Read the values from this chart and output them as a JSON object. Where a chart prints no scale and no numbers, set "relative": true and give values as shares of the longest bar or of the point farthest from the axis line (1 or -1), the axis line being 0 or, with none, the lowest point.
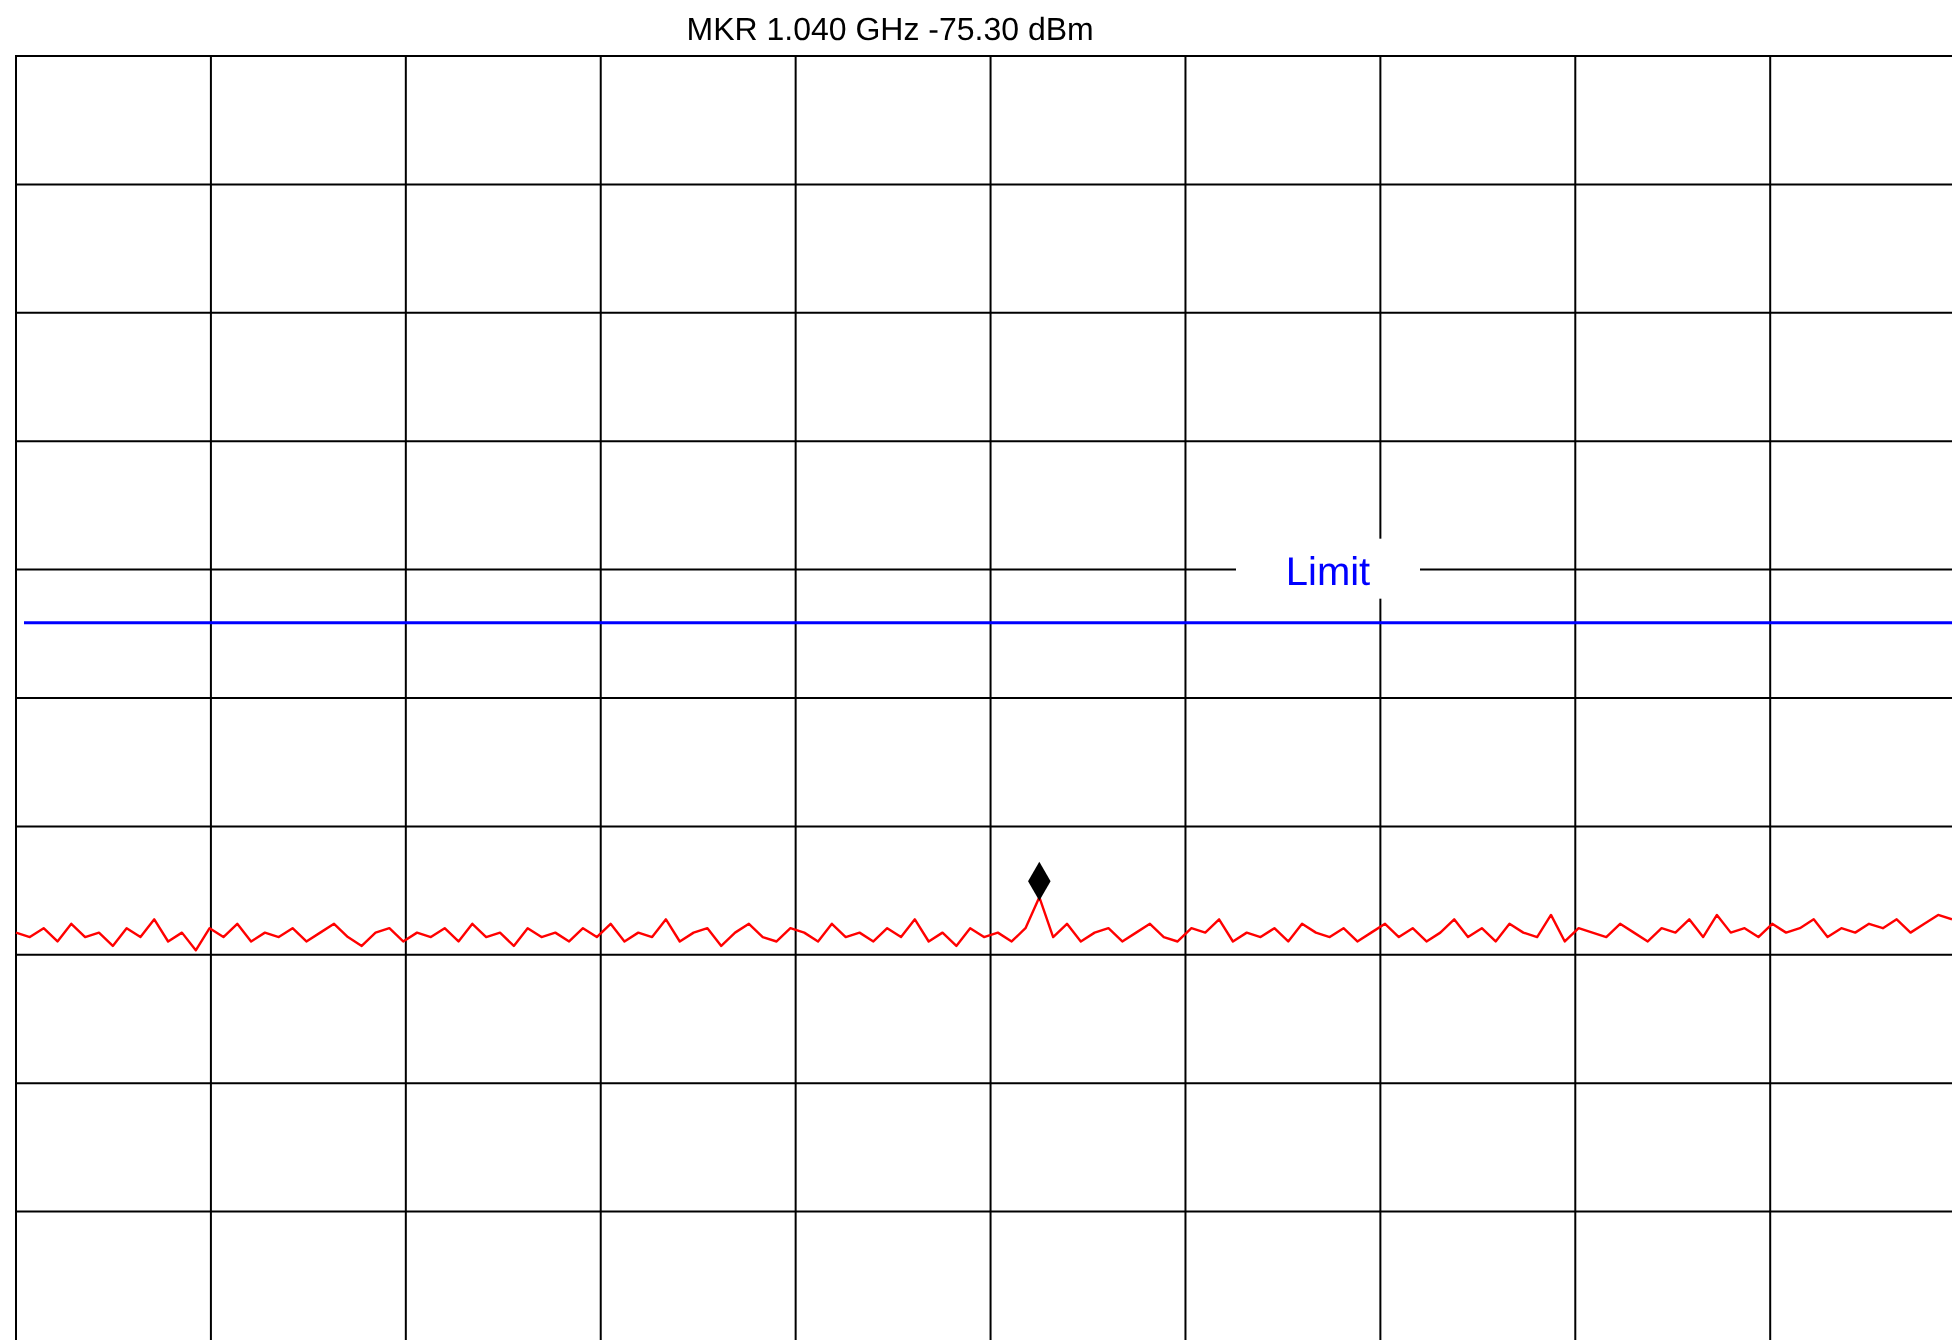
{
  "chart_data": {
    "type": "line",
    "title": "MKR 1.040 GHz  -75.30 dBm",
    "relative": true,
    "grid": true,
    "marker": "none",
    "line_style": "solid",
    "categories": [
      null,
      null,
      null,
      null,
      null,
      null,
      null,
      null,
      null,
      null,
      null,
      null,
      null,
      null,
      null,
      null,
      null,
      null,
      null,
      null,
      null,
      null,
      null,
      null,
      null,
      null,
      null,
      null,
      null,
      null,
      null,
      null,
      null,
      null,
      null,
      null,
      null,
      null,
      null,
      null,
      null,
      null,
      null,
      null,
      null,
      null,
      null,
      null,
      null,
      null,
      null,
      null,
      null,
      null,
      null,
      null,
      null,
      null,
      null,
      null,
      null,
      null,
      null,
      null,
      null,
      null,
      null,
      null,
      null,
      null,
      null,
      null,
      null,
      null,
      null,
      null,
      null,
      null,
      null,
      null,
      null,
      null,
      null,
      null,
      null,
      null,
      null,
      null,
      null,
      null,
      null,
      null,
      null,
      null,
      null,
      null,
      null,
      null,
      null,
      null,
      null,
      null,
      null,
      null,
      null,
      null,
      null,
      null,
      null,
      null,
      null,
      null,
      null,
      null,
      null,
      null,
      null,
      null,
      null,
      null,
      null,
      null,
      null,
      null,
      null,
      null,
      null,
      null,
      null,
      null,
      null,
      null,
      null,
      null,
      null,
      null,
      null,
      null,
      null,
      null,
      null
    ],
    "series": [
      {
        "color": "#ff0000",
        "values": [
          0.92,
          0.91,
          0.93,
          0.9,
          0.94,
          0.91,
          0.92,
          0.89,
          0.93,
          0.91,
          0.95,
          0.9,
          0.92,
          0.88,
          0.93,
          0.91,
          0.94,
          0.9,
          0.92,
          0.91,
          0.93,
          0.9,
          0.92,
          0.94,
          0.91,
          0.89,
          0.92,
          0.93,
          0.9,
          0.92,
          0.91,
          0.93,
          0.9,
          0.94,
          0.91,
          0.92,
          0.89,
          0.93,
          0.91,
          0.92,
          0.9,
          0.93,
          0.91,
          0.94,
          0.9,
          0.92,
          0.91,
          0.95,
          0.9,
          0.92,
          0.93,
          0.89,
          0.92,
          0.94,
          0.91,
          0.9,
          0.93,
          0.92,
          0.9,
          0.94,
          0.91,
          0.92,
          0.9,
          0.93,
          0.91,
          0.95,
          0.9,
          0.92,
          0.89,
          0.93,
          0.91,
          0.92,
          0.9,
          0.93,
          1.0,
          0.91,
          0.94,
          0.9,
          0.92,
          0.93,
          0.9,
          0.92,
          0.94,
          0.91,
          0.9,
          0.93,
          0.92,
          0.95,
          0.9,
          0.92,
          0.91,
          0.93,
          0.9,
          0.94,
          0.92,
          0.91,
          0.93,
          0.9,
          0.92,
          0.94,
          0.91,
          0.93,
          0.9,
          0.92,
          0.95,
          0.91,
          0.93,
          0.9,
          0.94,
          0.92,
          0.91,
          0.96,
          0.9,
          0.93,
          0.92,
          0.91,
          0.94,
          0.92,
          0.9,
          0.93,
          0.92,
          0.95,
          0.91,
          0.96,
          0.92,
          0.93,
          0.91,
          0.94,
          0.92,
          0.93,
          0.95,
          0.91,
          0.93,
          0.92,
          0.94,
          0.93,
          0.95,
          0.92,
          0.94,
          0.96,
          0.95
        ]
      }
    ],
    "ref_lines": [
      {
        "axis": "y",
        "value": 1.62,
        "label": "Limit",
        "color": "#0000ff",
        "line_style": "solid"
      }
    ]
  }
}
